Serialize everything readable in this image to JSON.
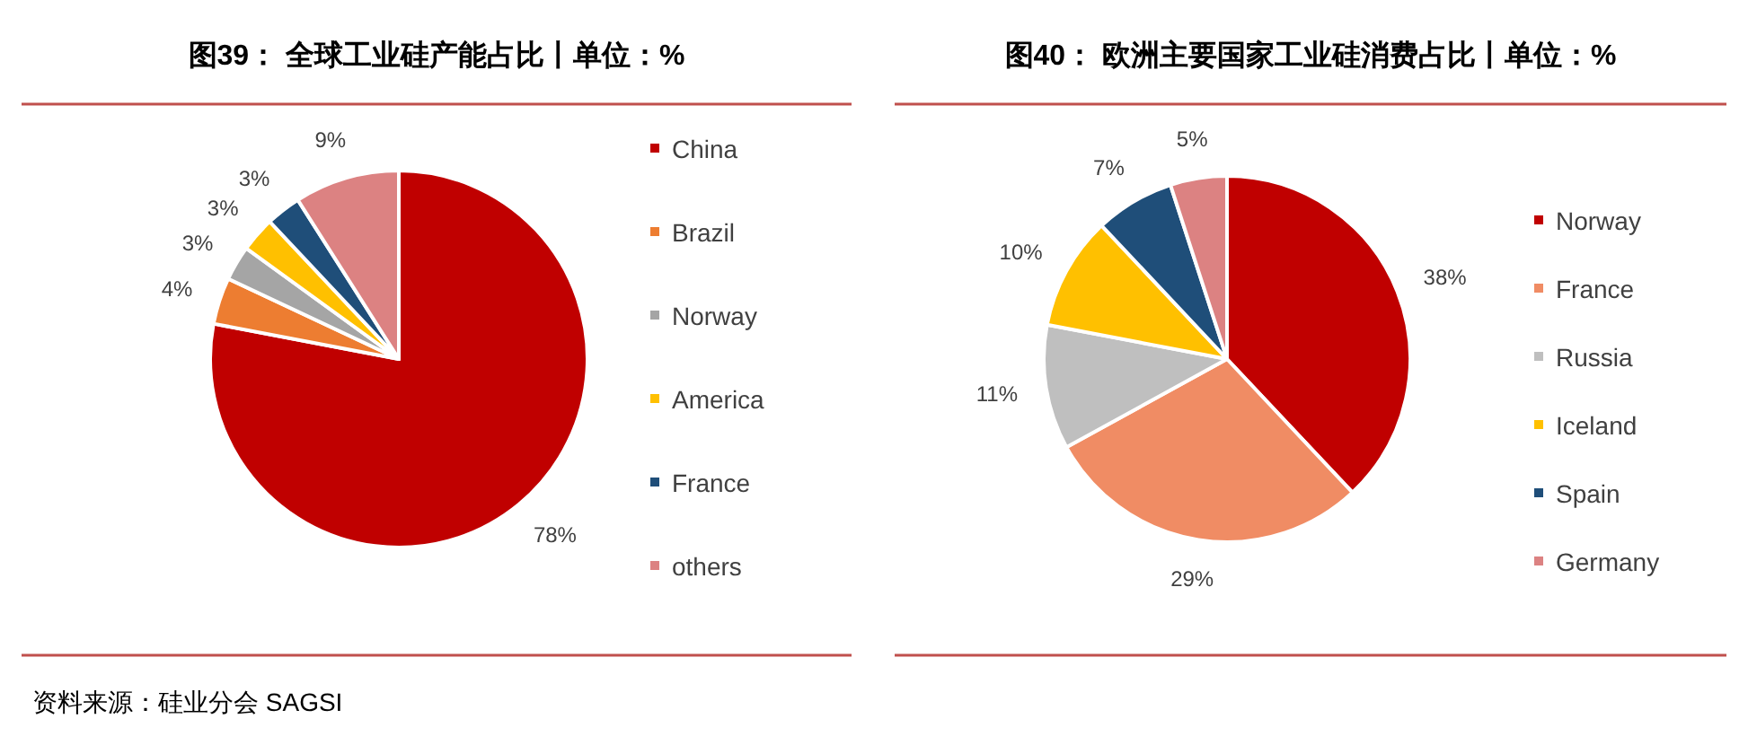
{
  "chart_data": [
    {
      "type": "pie",
      "title": "图39：  全球工业硅产能占比丨单位：%",
      "categories": [
        "China",
        "Brazil",
        "Norway",
        "America",
        "France",
        "others"
      ],
      "values": [
        78,
        4,
        3,
        3,
        3,
        9
      ],
      "colors": [
        "#c00000",
        "#ed7d31",
        "#a5a5a5",
        "#ffc000",
        "#1f4e79",
        "#dc8282"
      ],
      "value_labels": [
        "78%",
        "4%",
        "3%",
        "3%",
        "3%",
        "9%"
      ],
      "legend": "right",
      "annotations": [
        "资料来源：硅业分会 SAGSI"
      ]
    },
    {
      "type": "pie",
      "title": "图40：  欧洲主要国家工业硅消费占比丨单位：%",
      "categories": [
        "Norway",
        "France",
        "Russia",
        "Iceland",
        "Spain",
        "Germany"
      ],
      "values": [
        38,
        29,
        11,
        10,
        7,
        5
      ],
      "colors": [
        "#c00000",
        "#f08c64",
        "#bfbfbf",
        "#ffc000",
        "#1f4e79",
        "#dc8282"
      ],
      "value_labels": [
        "38%",
        "29%",
        "11%",
        "10%",
        "7%",
        "5%"
      ],
      "legend": "right"
    }
  ]
}
